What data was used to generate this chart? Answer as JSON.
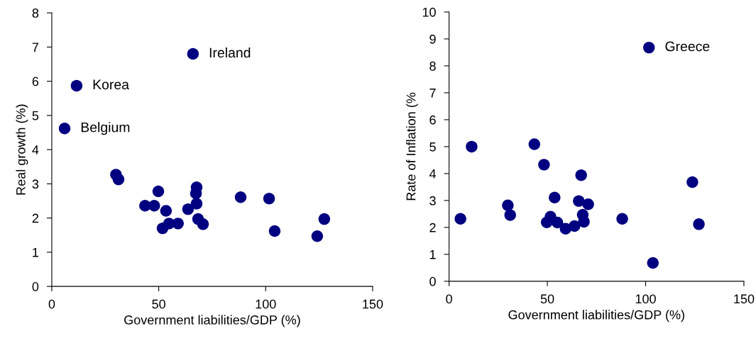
{
  "chart_data": [
    {
      "type": "scatter",
      "xlabel": "Government liabilities/GDP (%)",
      "ylabel": "Real growth (%)",
      "xlim": [
        0,
        150
      ],
      "ylim": [
        0,
        8
      ],
      "xticks": [
        0,
        50,
        100,
        150
      ],
      "yticks": [
        0,
        1,
        2,
        3,
        4,
        5,
        6,
        7,
        8
      ],
      "grid": false,
      "legend": false,
      "marker": "circle",
      "series": [
        {
          "color": "#000080",
          "x": [
            66,
            11.6,
            6,
            30,
            31.2,
            49.8,
            47.9,
            43.6,
            53.4,
            51.8,
            54.8,
            59,
            63.7,
            67.7,
            67.4,
            67.7,
            68.4,
            70.7,
            88.3,
            101.6,
            104.2,
            124.1,
            127.4
          ],
          "values": [
            6.8,
            5.87,
            4.62,
            3.27,
            3.13,
            2.78,
            2.36,
            2.36,
            2.21,
            1.7,
            1.84,
            1.84,
            2.26,
            2.9,
            2.72,
            2.42,
            1.97,
            1.82,
            2.61,
            2.57,
            1.62,
            1.47,
            1.97
          ]
        }
      ],
      "annotations": [
        {
          "text": "Ireland",
          "x": 66,
          "y": 6.8
        },
        {
          "text": "Korea",
          "x": 11.6,
          "y": 5.87
        },
        {
          "text": "Belgium",
          "x": 6,
          "y": 4.62
        }
      ]
    },
    {
      "type": "scatter",
      "xlabel": "Government liabilities/GDP (%)",
      "ylabel": "Rate of Inflation (%",
      "xlim": [
        0,
        150
      ],
      "ylim": [
        0,
        10
      ],
      "xticks": [
        0,
        50,
        100,
        150
      ],
      "yticks": [
        0,
        1,
        2,
        3,
        4,
        5,
        6,
        7,
        8,
        9,
        10
      ],
      "grid": false,
      "legend": false,
      "marker": "circle",
      "series": [
        {
          "color": "#000080",
          "x": [
            101.7,
            11.5,
            5.8,
            29.9,
            31.1,
            43.4,
            48.3,
            53.7,
            51.6,
            49.7,
            55.1,
            59.3,
            63.8,
            67.2,
            66,
            70.8,
            68,
            68.6,
            88.1,
            103.7,
            123.8,
            127.1
          ],
          "values": [
            8.68,
            5.0,
            2.32,
            2.82,
            2.46,
            5.09,
            4.33,
            3.11,
            2.4,
            2.19,
            2.18,
            1.95,
            2.05,
            3.94,
            2.98,
            2.86,
            2.47,
            2.21,
            2.32,
            0.68,
            3.68,
            2.12
          ]
        }
      ],
      "annotations": [
        {
          "text": "Greece",
          "x": 101.7,
          "y": 8.68
        }
      ]
    }
  ]
}
